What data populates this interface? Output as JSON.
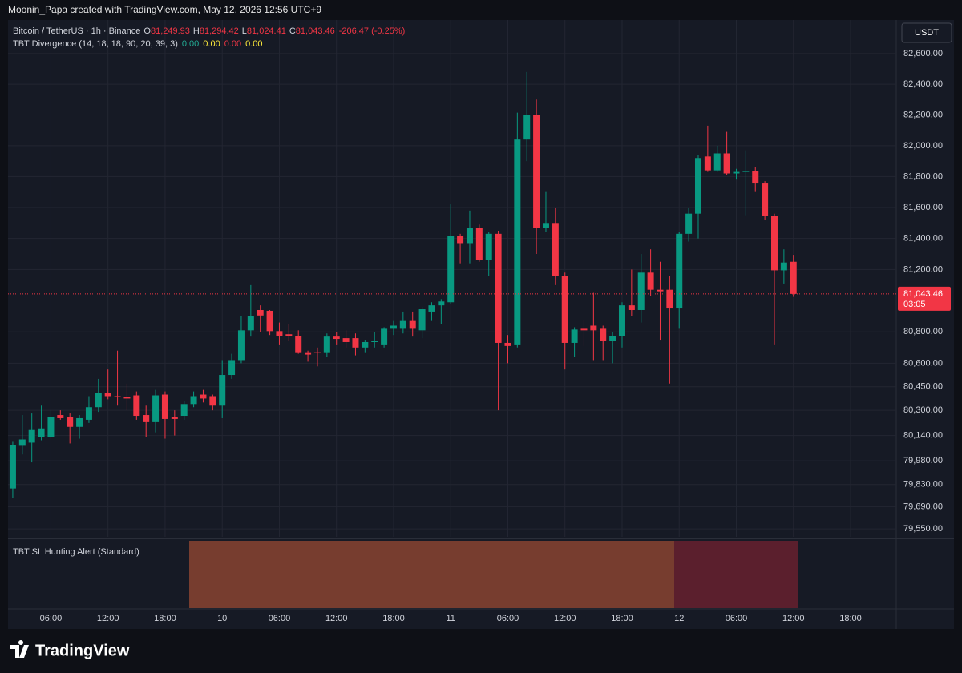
{
  "header": "Moonin_Papa created with TradingView.com, May 12, 2026 12:56 UTC+9",
  "footer": {
    "logo": "TradingView"
  },
  "chart_data": {
    "type": "candlestick",
    "legend": {
      "symbol": "Bitcoin / TetherUS · 1h · Binance",
      "fields": [
        {
          "key": "O",
          "value": "81,249.93"
        },
        {
          "key": "H",
          "value": "81,294.42"
        },
        {
          "key": "L",
          "value": "81,024.41"
        },
        {
          "key": "C",
          "value": "81,043.46"
        }
      ],
      "change": "-206.47 (-0.25%)"
    },
    "indicator": {
      "title": "TBT Divergence (14, 18, 18, 90, 20, 39, 3)",
      "values": [
        {
          "text": "0.00",
          "color": "#22ab94"
        },
        {
          "text": "0.00",
          "color": "#ffeb3b"
        },
        {
          "text": "0.00",
          "color": "#f23645"
        },
        {
          "text": "0.00",
          "color": "#ffeb3b"
        }
      ]
    },
    "lower_pane": {
      "title": "TBT SL Hunting Alert (Standard)"
    },
    "currency": "USDT",
    "up_color": "#089981",
    "down_color": "#f23645",
    "log_scale": true,
    "grid": true,
    "candles": {
      "open": [
        79805,
        80075,
        80095,
        80130,
        80130,
        80270,
        80260,
        80195,
        80240,
        80320,
        80410,
        80390,
        80385,
        80395,
        80270,
        80225,
        80400,
        80255,
        80265,
        80340,
        80400,
        80390,
        80330,
        80525,
        80620,
        80810,
        80940,
        80935,
        80805,
        80785,
        80775,
        80670,
        80670,
        80670,
        80770,
        80760,
        80760,
        80700,
        80735,
        80720,
        80820,
        80820,
        80870,
        80810,
        80930,
        80970,
        80990,
        81415,
        81370,
        81470,
        81260,
        81430,
        80730,
        80720,
        82040,
        82200,
        81470,
        81500,
        81160,
        80730,
        80820,
        80840,
        80820,
        80740,
        80775,
        80970,
        80940,
        81180,
        81070,
        81070,
        80950,
        81430,
        81560,
        81930,
        81840,
        81950,
        81820,
        81830,
        81835,
        81755,
        81545,
        81195,
        81249.93
      ],
      "high": [
        80100,
        80270,
        80280,
        80330,
        80300,
        80300,
        80280,
        80270,
        80390,
        80500,
        80560,
        80680,
        80470,
        80420,
        80330,
        80430,
        80420,
        80300,
        80360,
        80420,
        80430,
        80400,
        80620,
        80660,
        80900,
        81100,
        80970,
        80940,
        80860,
        80850,
        80810,
        80680,
        80700,
        80790,
        80800,
        80810,
        80790,
        80750,
        80800,
        80830,
        80870,
        80930,
        80930,
        80960,
        80990,
        81010,
        81620,
        81430,
        81580,
        81490,
        81440,
        81450,
        80780,
        82215,
        82480,
        82300,
        81700,
        81600,
        81180,
        80830,
        80880,
        81050,
        80840,
        80800,
        80990,
        81200,
        81300,
        81330,
        81250,
        81160,
        81440,
        81600,
        81940,
        82130,
        82000,
        82090,
        81850,
        81970,
        81860,
        81770,
        81560,
        81330,
        81294.42
      ],
      "low": [
        79745,
        80020,
        79970,
        80110,
        80120,
        80240,
        80090,
        80120,
        80220,
        80290,
        80370,
        80330,
        80300,
        80240,
        80130,
        80160,
        80120,
        80140,
        80240,
        80320,
        80350,
        80300,
        80250,
        80500,
        80600,
        80770,
        80800,
        80780,
        80720,
        80740,
        80660,
        80610,
        80580,
        80640,
        80720,
        80700,
        80650,
        80670,
        80700,
        80700,
        80780,
        80790,
        80770,
        80760,
        80870,
        80850,
        80980,
        81240,
        81240,
        81250,
        81160,
        80300,
        80600,
        80700,
        81900,
        81300,
        81440,
        81100,
        80560,
        80640,
        80710,
        80620,
        80620,
        80600,
        80700,
        80900,
        80860,
        81030,
        80750,
        80470,
        80820,
        81380,
        81400,
        81830,
        81830,
        81810,
        81780,
        81550,
        81700,
        81520,
        80720,
        81110,
        81024.41
      ],
      "close": [
        80080,
        80115,
        80175,
        80185,
        80260,
        80250,
        80195,
        80250,
        80320,
        80410,
        80390,
        80385,
        80375,
        80265,
        80225,
        80395,
        80245,
        80245,
        80340,
        80390,
        80375,
        80330,
        80525,
        80620,
        80810,
        80900,
        80905,
        80805,
        80775,
        80775,
        80670,
        80655,
        80665,
        80770,
        80755,
        80735,
        80700,
        80735,
        80740,
        80820,
        80840,
        80870,
        80820,
        80945,
        80970,
        80995,
        81415,
        81370,
        81470,
        81260,
        81430,
        80730,
        80710,
        82040,
        82200,
        81470,
        81500,
        81160,
        80730,
        80815,
        80810,
        80810,
        80740,
        80775,
        80970,
        80940,
        81180,
        81070,
        81060,
        80950,
        81430,
        81560,
        81920,
        81840,
        81950,
        81820,
        81830,
        81835,
        81755,
        81545,
        81195,
        81245,
        81043.46
      ]
    },
    "price_tag": {
      "value": 81043.46,
      "label": "81,043.46",
      "countdown": "03:05",
      "color": "#f23645"
    },
    "ylim": [
      79500,
      82820
    ],
    "yticks": [
      {
        "value": 79550,
        "label": "79,550.00"
      },
      {
        "value": 79690,
        "label": "79,690.00"
      },
      {
        "value": 79830,
        "label": "79,830.00"
      },
      {
        "value": 79980,
        "label": "79,980.00"
      },
      {
        "value": 80140,
        "label": "80,140.00"
      },
      {
        "value": 80300,
        "label": "80,300.00"
      },
      {
        "value": 80450,
        "label": "80,450.00"
      },
      {
        "value": 80600,
        "label": "80,600.00"
      },
      {
        "value": 80800,
        "label": "80,800.00"
      },
      {
        "value": 81200,
        "label": "81,200.00"
      },
      {
        "value": 81400,
        "label": "81,400.00"
      },
      {
        "value": 81600,
        "label": "81,600.00"
      },
      {
        "value": 81800,
        "label": "81,800.00"
      },
      {
        "value": 82000,
        "label": "82,000.00"
      },
      {
        "value": 82200,
        "label": "82,200.00"
      },
      {
        "value": 82400,
        "label": "82,400.00"
      },
      {
        "value": 82600,
        "label": "82,600.00"
      }
    ],
    "xlim": [
      -0.5,
      92.8
    ],
    "xticks": [
      {
        "value": 4,
        "label": "06:00"
      },
      {
        "value": 10,
        "label": "12:00"
      },
      {
        "value": 16,
        "label": "18:00"
      },
      {
        "value": 22,
        "label": "10"
      },
      {
        "value": 28,
        "label": "06:00"
      },
      {
        "value": 34,
        "label": "12:00"
      },
      {
        "value": 40,
        "label": "18:00"
      },
      {
        "value": 46,
        "label": "11"
      },
      {
        "value": 52,
        "label": "06:00"
      },
      {
        "value": 58,
        "label": "12:00"
      },
      {
        "value": 64,
        "label": "18:00"
      },
      {
        "value": 70,
        "label": "12"
      },
      {
        "value": 76,
        "label": "06:00"
      },
      {
        "value": 82,
        "label": "12:00"
      },
      {
        "value": 88,
        "label": "18:00"
      }
    ]
  }
}
